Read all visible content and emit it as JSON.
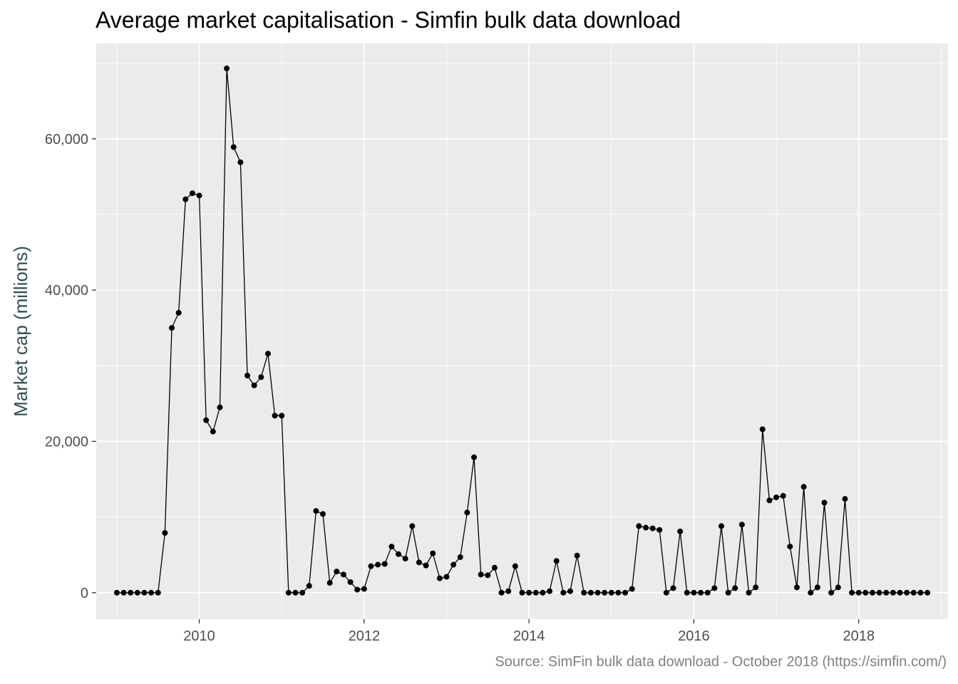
{
  "chart_data": {
    "type": "line",
    "title": "Average market capitalisation - Simfin bulk data download",
    "caption": "Source: SimFin bulk data download - October 2018 (https://simfin.com/)",
    "xlabel": "",
    "ylabel": "Market cap (millions)",
    "x_ticks": [
      "2010",
      "2012",
      "2014",
      "2016",
      "2018"
    ],
    "y_ticks": [
      "0",
      "20,000",
      "40,000",
      "60,000"
    ],
    "ylim": [
      -3500,
      72600
    ],
    "xlim": [
      "2008-10",
      "2019-02"
    ],
    "grid": true,
    "legend": "none",
    "markers": true,
    "series": [
      {
        "color": "#000000",
        "points": [
          [
            "2009-01",
            0
          ],
          [
            "2009-02",
            0
          ],
          [
            "2009-03",
            0
          ],
          [
            "2009-04",
            0
          ],
          [
            "2009-05",
            0
          ],
          [
            "2009-06",
            0
          ],
          [
            "2009-07",
            0
          ],
          [
            "2009-08",
            7900
          ],
          [
            "2009-09",
            35000
          ],
          [
            "2009-10",
            37000
          ],
          [
            "2009-11",
            52000
          ],
          [
            "2009-12",
            52800
          ],
          [
            "2010-01",
            52500
          ],
          [
            "2010-02",
            22800
          ],
          [
            "2010-03",
            21300
          ],
          [
            "2010-04",
            24500
          ],
          [
            "2010-05",
            69300
          ],
          [
            "2010-06",
            58900
          ],
          [
            "2010-07",
            56900
          ],
          [
            "2010-08",
            28700
          ],
          [
            "2010-09",
            27400
          ],
          [
            "2010-10",
            28500
          ],
          [
            "2010-11",
            31600
          ],
          [
            "2010-12",
            23400
          ],
          [
            "2011-01",
            23400
          ],
          [
            "2011-02",
            0
          ],
          [
            "2011-03",
            0
          ],
          [
            "2011-04",
            0
          ],
          [
            "2011-05",
            900
          ],
          [
            "2011-06",
            10800
          ],
          [
            "2011-07",
            10400
          ],
          [
            "2011-08",
            1300
          ],
          [
            "2011-09",
            2800
          ],
          [
            "2011-10",
            2400
          ],
          [
            "2011-11",
            1400
          ],
          [
            "2011-12",
            400
          ],
          [
            "2012-01",
            500
          ],
          [
            "2012-02",
            3500
          ],
          [
            "2012-03",
            3700
          ],
          [
            "2012-04",
            3800
          ],
          [
            "2012-05",
            6100
          ],
          [
            "2012-06",
            5100
          ],
          [
            "2012-07",
            4500
          ],
          [
            "2012-08",
            8800
          ],
          [
            "2012-09",
            4000
          ],
          [
            "2012-10",
            3600
          ],
          [
            "2012-11",
            5200
          ],
          [
            "2012-12",
            1900
          ],
          [
            "2013-01",
            2100
          ],
          [
            "2013-02",
            3700
          ],
          [
            "2013-03",
            4700
          ],
          [
            "2013-04",
            10600
          ],
          [
            "2013-05",
            17900
          ],
          [
            "2013-06",
            2400
          ],
          [
            "2013-07",
            2300
          ],
          [
            "2013-08",
            3300
          ],
          [
            "2013-09",
            0
          ],
          [
            "2013-10",
            200
          ],
          [
            "2013-11",
            3500
          ],
          [
            "2013-12",
            0
          ],
          [
            "2014-01",
            0
          ],
          [
            "2014-02",
            0
          ],
          [
            "2014-03",
            0
          ],
          [
            "2014-04",
            200
          ],
          [
            "2014-05",
            4200
          ],
          [
            "2014-06",
            0
          ],
          [
            "2014-07",
            200
          ],
          [
            "2014-08",
            4900
          ],
          [
            "2014-09",
            0
          ],
          [
            "2014-10",
            0
          ],
          [
            "2014-11",
            0
          ],
          [
            "2014-12",
            0
          ],
          [
            "2015-01",
            0
          ],
          [
            "2015-02",
            0
          ],
          [
            "2015-03",
            0
          ],
          [
            "2015-04",
            500
          ],
          [
            "2015-05",
            8800
          ],
          [
            "2015-06",
            8600
          ],
          [
            "2015-07",
            8500
          ],
          [
            "2015-08",
            8300
          ],
          [
            "2015-09",
            0
          ],
          [
            "2015-10",
            600
          ],
          [
            "2015-11",
            8100
          ],
          [
            "2015-12",
            0
          ],
          [
            "2016-01",
            0
          ],
          [
            "2016-02",
            0
          ],
          [
            "2016-03",
            0
          ],
          [
            "2016-04",
            600
          ],
          [
            "2016-05",
            8800
          ],
          [
            "2016-06",
            0
          ],
          [
            "2016-07",
            600
          ],
          [
            "2016-08",
            9000
          ],
          [
            "2016-09",
            0
          ],
          [
            "2016-10",
            700
          ],
          [
            "2016-11",
            21600
          ],
          [
            "2016-12",
            12200
          ],
          [
            "2017-01",
            12600
          ],
          [
            "2017-02",
            12800
          ],
          [
            "2017-03",
            6100
          ],
          [
            "2017-04",
            700
          ],
          [
            "2017-05",
            14000
          ],
          [
            "2017-06",
            0
          ],
          [
            "2017-07",
            700
          ],
          [
            "2017-08",
            11900
          ],
          [
            "2017-09",
            0
          ],
          [
            "2017-10",
            700
          ],
          [
            "2017-11",
            12400
          ],
          [
            "2017-12",
            0
          ],
          [
            "2018-01",
            0
          ],
          [
            "2018-02",
            0
          ],
          [
            "2018-03",
            0
          ],
          [
            "2018-04",
            0
          ],
          [
            "2018-05",
            0
          ],
          [
            "2018-06",
            0
          ],
          [
            "2018-07",
            0
          ],
          [
            "2018-08",
            0
          ],
          [
            "2018-09",
            0
          ],
          [
            "2018-10",
            0
          ],
          [
            "2018-11",
            0
          ]
        ]
      }
    ]
  }
}
